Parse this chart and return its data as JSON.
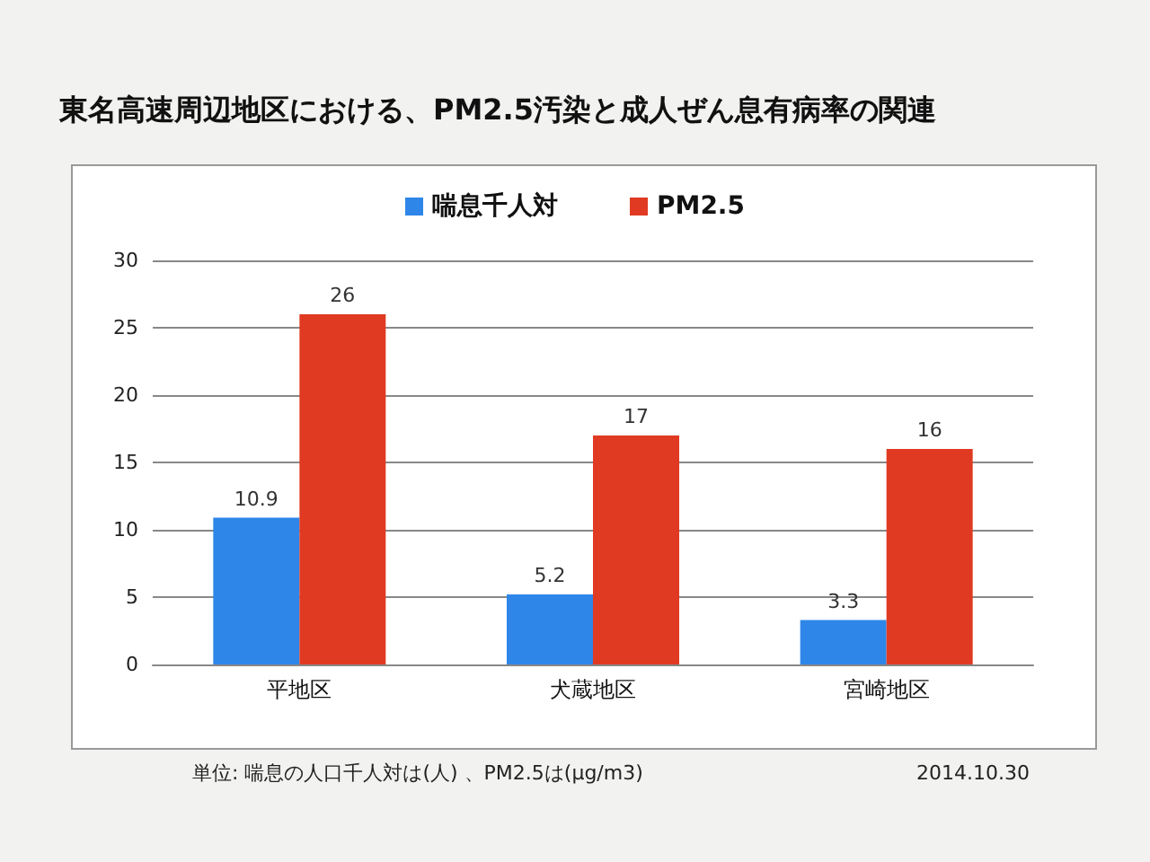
{
  "chart_data": {
    "type": "bar",
    "title": "東名高速周辺地区における、PM2.5汚染と成人ぜん息有病率の関連",
    "categories": [
      "平地区",
      "犬蔵地区",
      "宮崎地区"
    ],
    "series": [
      {
        "name": "喘息千人対",
        "color": "#2e86e8",
        "values": [
          10.9,
          5.2,
          3.3
        ]
      },
      {
        "name": "PM2.5",
        "color": "#e03a22",
        "values": [
          26,
          17,
          16
        ]
      }
    ],
    "ylim": [
      0,
      30
    ],
    "yticks": [
      0,
      5,
      10,
      15,
      20,
      25,
      30
    ],
    "grid": "y",
    "legend": "top",
    "data_labels": true,
    "annotations": [
      "単位: 喘息の人口千人対は(人) 、PM2.5は(μg/m3)",
      "2014.10.30"
    ]
  }
}
